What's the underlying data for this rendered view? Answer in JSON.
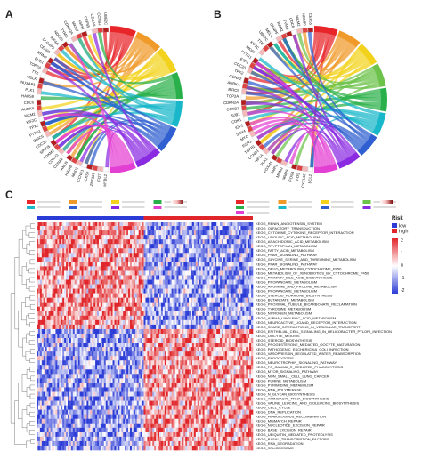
{
  "panels": {
    "a": {
      "letter": "A"
    },
    "b": {
      "letter": "B"
    },
    "c": {
      "letter": "C"
    }
  },
  "chart_data": [
    {
      "type": "chord",
      "panel": "A",
      "genes": [
        "MYBL2",
        "IFI27",
        "ZNF367",
        "CKS2",
        "CCNE1",
        "MND1",
        "HJURP",
        "ANLN",
        "CCNA2",
        "CDKN3",
        "FOXM1",
        "SPAG5",
        "CDC20",
        "BIRC5",
        "PTTG1",
        "TPX2",
        "KIF2C",
        "MCM2",
        "AURKA",
        "CDC6",
        "HAUS8",
        "PLK1",
        "NUSAP1",
        "MELK",
        "TTK",
        "TOP2A",
        "BUB1",
        "RRM2",
        "CENPF",
        "DLGAP5",
        "KIF4A",
        "NDC80",
        "TYMS",
        "CDKN2A",
        "MKI67",
        "ASPM",
        "CEP55",
        "CDCA8",
        "CCNB2",
        "UBE2C"
      ],
      "pathway_colors": [
        "#e8262a",
        "#f09a2a",
        "#f2d21b",
        "#2ab04a",
        "#18b7c9",
        "#2f5fd0",
        "#8a2be2",
        "#e43fd3"
      ],
      "logfc_colors": [
        "#ffffff",
        "#f6b9b9",
        "#e04545",
        "#7a0a0a"
      ]
    },
    {
      "type": "chord",
      "panel": "B",
      "genes": [
        "BCL2",
        "CXCL12",
        "FOS",
        "FOSB",
        "MMP9",
        "MDM2",
        "TIMP1",
        "FOXM1",
        "PLK1",
        "HIF1A",
        "CCND1",
        "TGFB1",
        "EGR1",
        "MYC",
        "SOX4",
        "IGF2",
        "CDK1",
        "BUB1",
        "CCNB1",
        "CDKN2A",
        "TOP2A",
        "BIRC5",
        "AURKA",
        "CCNA2",
        "TPX2",
        "CDC20",
        "E2F1",
        "PTTG1",
        "MKI67",
        "KIF2C",
        "TTK",
        "UBE2C",
        "MELK",
        "CENPF",
        "RRM2",
        "TYMS",
        "CDC6",
        "MCM2",
        "NDC80",
        "CEP55"
      ],
      "pathway_colors": [
        "#e8262a",
        "#f09a2a",
        "#f2d21b",
        "#6cc24a",
        "#2ab04a",
        "#18b7c9",
        "#2f5fd0",
        "#8a2be2",
        "#e43fd3"
      ],
      "logfc_colors": [
        "#ffffff",
        "#f6b9b9",
        "#e04545",
        "#7a0a0a"
      ]
    },
    {
      "type": "heatmap",
      "panel": "C",
      "legend": {
        "title": "Risk",
        "items": [
          {
            "label": "low",
            "color": "#2b3bd6"
          },
          {
            "label": "high",
            "color": "#e0262a"
          }
        ],
        "scale_ticks": [
          "2",
          "1",
          "0",
          "-1",
          "-2"
        ],
        "scale_colors": [
          "#e0262a",
          "#ffffff",
          "#2b3bd6"
        ]
      },
      "rows": [
        "KEGG_RENIN_ANGIOTENSIN_SYSTEM",
        "KEGG_OLFACTORY_TRANSDUCTION",
        "KEGG_CYTOKINE_CYTOKINE_RECEPTOR_INTERACTION",
        "KEGG_LINOLEIC_ACID_METABOLISM",
        "KEGG_ARACHIDONIC_ACID_METABOLISM",
        "KEGG_TRYPTOPHAN_METABOLISM",
        "KEGG_FATTY_ACID_METABOLISM",
        "KEGG_PPAR_SIGNALING_PATHWAY",
        "KEGG_GLYCINE_SERINE_AND_THREONINE_METABOLISM",
        "KEGG_PPAR_SIGNALING_PATHWAY",
        "KEGG_DRUG_METABOLISM_CYTOCHROME_P450",
        "KEGG_METABOLISM_OF_XENOBIOTICS_BY_CYTOCHROME_P450",
        "KEGG_PRIMARY_BILE_ACID_BIOSYNTHESIS",
        "KEGG_PROPANOATE_METABOLISM",
        "KEGG_ARGININE_AND_PROLINE_METABOLISM",
        "KEGG_PROPANOATE_METABOLISM",
        "KEGG_STEROID_HORMONE_BIOSYNTHESIS",
        "KEGG_BUTANOATE_METABOLISM",
        "KEGG_PROXIMAL_TUBULE_BICARBONATE_RECLAMATION",
        "KEGG_TYROSINE_METABOLISM",
        "KEGG_NITROGEN_METABOLISM",
        "KEGG_ALPHA_LINOLENIC_ACID_METABOLISM",
        "KEGG_NEUROACTIVE_LIGAND_RECEPTOR_INTERACTION",
        "KEGG_SNARE_INTERACTIONS_IN_VESICULAR_TRANSPORT",
        "KEGG_EPITHELIAL_CELL_SIGNALING_IN_HELICOBACTER_PYLORI_INFECTION",
        "KEGG_OOCYTE_MEIOSIS",
        "KEGG_STEROID_BIOSYNTHESIS",
        "KEGG_PROGESTERONE_MEDIATED_OOCYTE_MATURATION",
        "KEGG_PATHOGENIC_ESCHERICHIA_COLI_INFECTION",
        "KEGG_VASOPRESSIN_REGULATED_WATER_REABSORPTION",
        "KEGG_ENDOCYTOSIS",
        "KEGG_NEUROTROPHIN_SIGNALING_PATHWAY",
        "KEGG_FC_GAMMA_R_MEDIATED_PHAGOCYTOSIS",
        "KEGG_MTOR_SIGNALING_PATHWAY",
        "KEGG_NON_SMALL_CELL_LUNG_CANCER",
        "KEGG_PURINE_METABOLISM",
        "KEGG_PYRIMIDINE_METABOLISM",
        "KEGG_RNA_POLYMERASE",
        "KEGG_N_GLYCAN_BIOSYNTHESIS",
        "KEGG_AMINOACYL_TRNA_BIOSYNTHESIS",
        "KEGG_VALINE_LEUCINE_AND_ISOLEUCINE_BIOSYNTHESIS",
        "KEGG_CELL_CYCLE",
        "KEGG_DNA_REPLICATION",
        "KEGG_HOMOLOGOUS_RECOMBINATION",
        "KEGG_MISMATCH_REPAIR",
        "KEGG_NUCLEOTIDE_EXCISION_REPAIR",
        "KEGG_BASE_EXCISION_REPAIR",
        "KEGG_UBIQUITIN_MEDIATED_PROTEOLYSIS",
        "KEGG_BASAL_TRANSCRIPTION_FACTORS",
        "KEGG_RNA_DEGRADATION",
        "KEGG_SPLICEOSOME"
      ],
      "groups": [
        {
          "label": "low",
          "samples": 62
        },
        {
          "label": "high",
          "samples": 63
        }
      ],
      "upper_block_rows": 24,
      "value_range": [
        -2,
        2
      ]
    }
  ]
}
